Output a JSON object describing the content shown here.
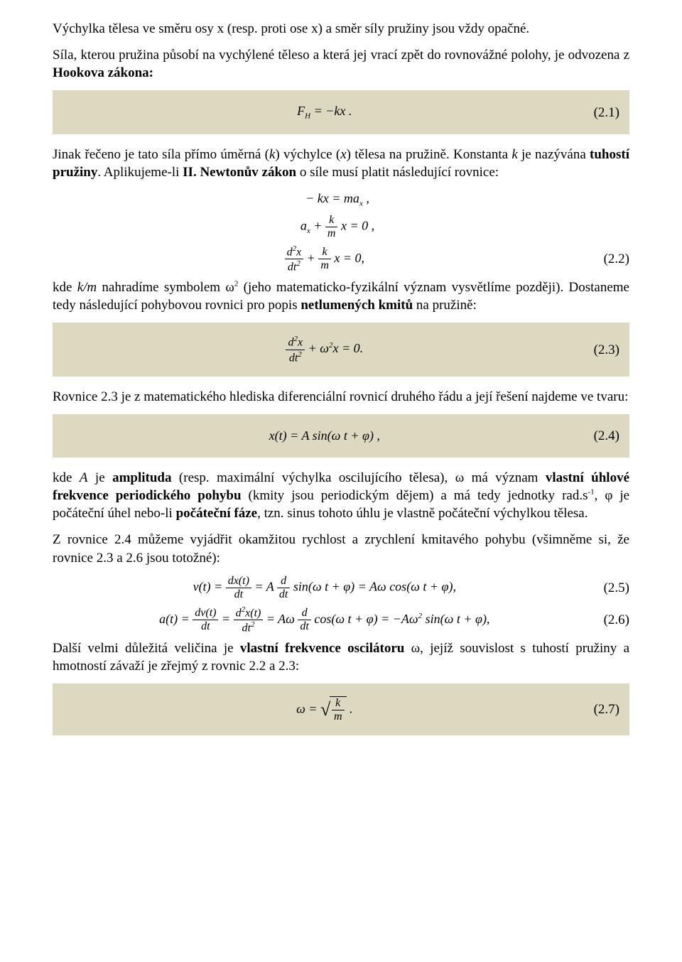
{
  "colors": {
    "eq_bg": "#dcd9c0",
    "text": "#000000",
    "page_bg": "#ffffff"
  },
  "p1": "Výchylka tělesa ve směru osy x (resp. proti ose x) a směr síly pružiny jsou vždy opačné.",
  "p2a": "Síla, kterou pružina působí na vychýlené těleso a která jej vrací zpět do rovnovážné polohy, je odvozena z ",
  "p2b": "Hookova zákona:",
  "eq1": {
    "lhs": "F",
    "sub": "H",
    "rhs": " = −kx .",
    "num": "(2.1)"
  },
  "p3a": "Jinak řečeno je tato síla přímo úměrná (",
  "p3k": "k",
  "p3b": ") výchylce (",
  "p3x": "x",
  "p3c": ") tělesa na pružině. Konstanta ",
  "p3k2": "k",
  "p3d": " je nazývána ",
  "p3e": "tuhostí pružiny",
  "p3f": ". Aplikujeme-li ",
  "p3g": "II. Newtonův zákon",
  "p3h": " o síle musí platit následující rovnice:",
  "eq2a": "− kx = ma",
  "eq2a_sub": "x",
  "eq2a_end": " ,",
  "eq2b_a": "a",
  "eq2b_sub": "x",
  "eq2b_plus": " + ",
  "eq2b_num": "k",
  "eq2b_den": "m",
  "eq2b_end": " x = 0 ,",
  "eq2c_num1": "d",
  "eq2c_sup1": "2",
  "eq2c_num1b": "x",
  "eq2c_den1a": "d",
  "eq2c_den1b": "t",
  "eq2c_den1sup": "2",
  "eq2c_plus": " + ",
  "eq2c_num2": "k",
  "eq2c_den2": "m",
  "eq2c_end": " x = 0,",
  "eq2c_numlabel": "(2.2)",
  "p4a": "kde ",
  "p4km": "k/m",
  "p4b": " nahradíme symbolem ",
  "p4w": "ω",
  "p4sup": "2",
  "p4c": " (jeho matematicko-fyzikální význam vysvětlíme později). Dostaneme tedy následující pohybovou rovnici pro popis ",
  "p4d": "netlumených kmitů",
  "p4e": " na pružině:",
  "eq3_num1": "d",
  "eq3_sup1": "2",
  "eq3_num1b": "x",
  "eq3_den1a": "d",
  "eq3_den1b": "t",
  "eq3_den1sup": "2",
  "eq3_plus": " + ω",
  "eq3_sup2": "2",
  "eq3_end": "x = 0.",
  "eq3_numlabel": "(2.3)",
  "p5": "Rovnice 2.3 je z matematického hlediska diferenciální rovnicí druhého řádu a její řešení najdeme ve tvaru:",
  "eq4": "x(t) = A sin(ω t + φ) ,",
  "eq4_num": "(2.4)",
  "p6a": "kde ",
  "p6A": "A",
  "p6b": " je ",
  "p6c": "amplituda",
  "p6d": " (resp. maximální výchylka oscilujícího tělesa), ",
  "p6w": "ω",
  "p6e": " má význam ",
  "p6f": "vlastní úhlové frekvence periodického pohybu",
  "p6g": " (kmity jsou periodickým dějem) a má tedy jednotky rad.s",
  "p6sup": "-1",
  "p6h": ", ",
  "p6phi": "φ",
  "p6i": " je počáteční úhel nebo-li ",
  "p6j": "počáteční fáze",
  "p6k": ", tzn. sinus tohoto úhlu je vlastně počáteční výchylkou tělesa.",
  "p7": "Z rovnice 2.4 můžeme vyjádřit okamžitou rychlost a zrychlení kmitavého pohybu (všimněme si, že rovnice 2.3 a 2.6 jsou totožné):",
  "eq5_v": "v(t) = ",
  "eq5_f1n": "dx(t)",
  "eq5_f1d": "dt",
  "eq5_eq": " = A ",
  "eq5_f2n": "d",
  "eq5_f2d": "dt",
  "eq5_mid": " sin(ω t + φ) = Aω cos(ω t + φ),",
  "eq5_num": "(2.5)",
  "eq6_a": "a(t) = ",
  "eq6_f1n": "dv(t)",
  "eq6_f1d": "dt",
  "eq6_eq1": " = ",
  "eq6_f2na": "d",
  "eq6_f2sup": "2",
  "eq6_f2nb": "x(t)",
  "eq6_f2da": "d",
  "eq6_f2db": "t",
  "eq6_f2dsup": "2",
  "eq6_eq2": " = Aω ",
  "eq6_f3n": "d",
  "eq6_f3d": "dt",
  "eq6_mid": " cos(ω t + φ) = −Aω",
  "eq6_sup2": "2",
  "eq6_end": " sin(ω t + φ),",
  "eq6_num": "(2.6)",
  "p8a": "Další velmi důležitá veličina je ",
  "p8b": "vlastní frekvence oscilátoru",
  "p8sp": " ",
  "p8w": "ω",
  "p8c": ", jejíž souvislost s tuhostí pružiny a hmotností závaží je zřejmý z rovnic 2.2 a 2.3:",
  "eq7_w": "ω = ",
  "eq7_num": "k",
  "eq7_den": "m",
  "eq7_end": " .",
  "eq7_numlabel": "(2.7)"
}
